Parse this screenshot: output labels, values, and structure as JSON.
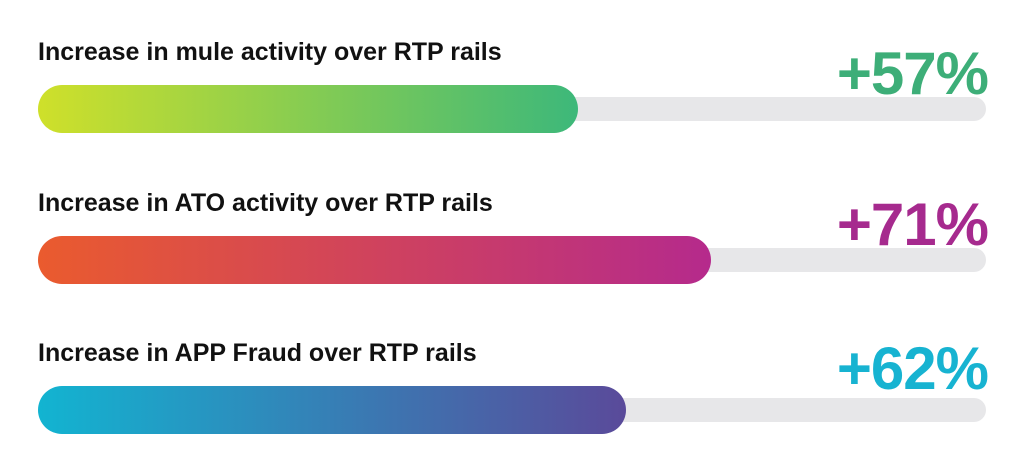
{
  "chart_data": {
    "type": "bar",
    "orientation": "horizontal",
    "title": "",
    "xlabel": "",
    "ylabel": "",
    "xlim": [
      0,
      100
    ],
    "categories": [
      "Increase in mule activity over RTP rails",
      "Increase in ATO activity over RTP rails",
      "Increase in APP Fraud over RTP rails"
    ],
    "values": [
      57,
      71,
      62
    ],
    "value_labels": [
      "+57%",
      "+71%",
      "+62%"
    ],
    "colors": [
      {
        "start": "#cfe02a",
        "end": "#3db87a",
        "label": "#3dae78"
      },
      {
        "start": "#ea5b2e",
        "end": "#b52a8c",
        "label": "#a62a8e"
      },
      {
        "start": "#12b4d1",
        "end": "#5a4a9a",
        "label": "#17b3d1"
      }
    ],
    "track_color": "#e7e7e9",
    "grid": false,
    "legend": "none"
  }
}
